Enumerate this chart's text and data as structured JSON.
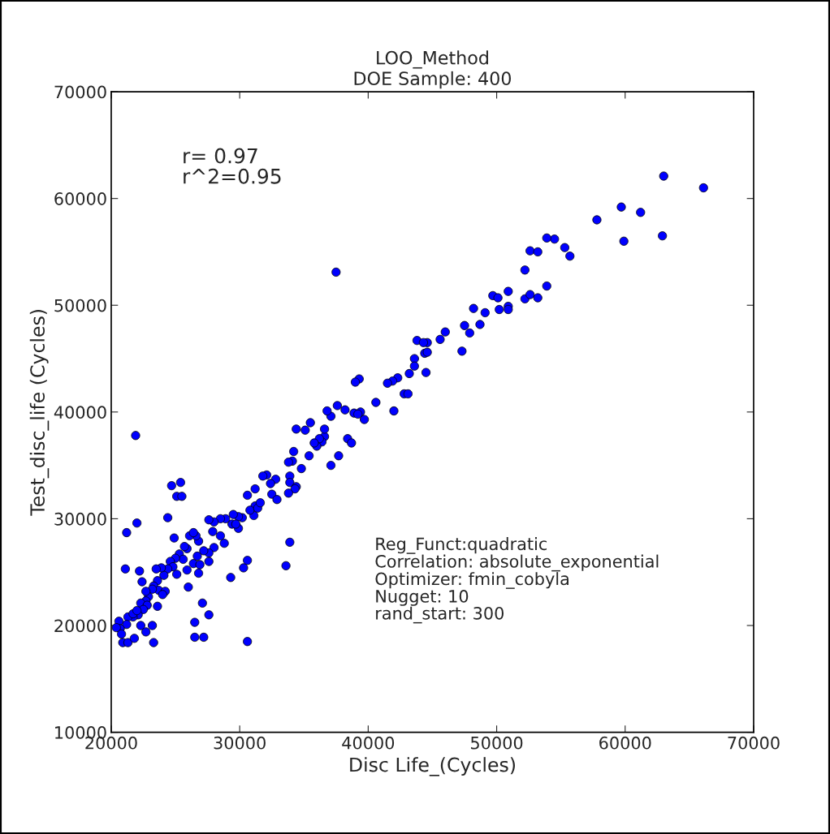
{
  "chart_data": {
    "type": "scatter",
    "title": "LOO_Method",
    "subtitle": "DOE Sample: 400",
    "xlabel": "Disc Life_(Cycles)",
    "ylabel": "Test_disc_life (Cycles)",
    "xlim": [
      20000,
      70000
    ],
    "xticks": [
      20000,
      30000,
      40000,
      50000,
      60000,
      70000
    ],
    "ylim": [
      10000,
      70000
    ],
    "yticks": [
      10000,
      20000,
      30000,
      40000,
      50000,
      60000,
      70000
    ],
    "grid": false,
    "marker": "circle",
    "annotations": [
      "r= 0.97\nr^2=0.95",
      "Reg_Funct:quadratic\nCorrelation: absolute_exponential\nOptimizer: fmin_cobyla\nNugget: 10\nrand_start: 300"
    ],
    "series": [
      {
        "color": "#0000ff",
        "x": [
          63000,
          66100,
          57800,
          59700,
          61200,
          59900,
          62900,
          54500,
          53900,
          55300,
          55700,
          52600,
          53200,
          52200,
          53900,
          52200,
          52600,
          53200,
          50900,
          49700,
          50100,
          49100,
          50900,
          50900,
          50200,
          48200,
          48700,
          47900,
          47500,
          47300,
          46000,
          45600,
          44600,
          43800,
          44300,
          44400,
          44600,
          43600,
          44500,
          43600,
          43200,
          42300,
          41900,
          41500,
          42000,
          42800,
          43100,
          40600,
          39300,
          39000,
          38200,
          39400,
          39700,
          38900,
          39200,
          38400,
          38700,
          37500,
          37600,
          37100,
          37700,
          37100,
          36800,
          36600,
          36400,
          36000,
          36200,
          35800,
          36600,
          35100,
          34400,
          35500,
          34800,
          35400,
          34200,
          34100,
          33800,
          33900,
          33900,
          34400,
          34300,
          33800,
          33600,
          33900,
          32800,
          32500,
          32400,
          32100,
          31800,
          32900,
          31200,
          31200,
          30600,
          31100,
          30800,
          31400,
          31600,
          30200,
          29900,
          29500,
          29900,
          29400,
          29300,
          30300,
          30600,
          30600,
          29700,
          28900,
          28500,
          28000,
          27600,
          27900,
          28500,
          28800,
          28000,
          27600,
          27200,
          26800,
          26600,
          26100,
          26400,
          25900,
          25700,
          25300,
          25600,
          25000,
          24600,
          24800,
          24400,
          24100,
          23900,
          23600,
          23300,
          23700,
          23200,
          22900,
          22700,
          22300,
          22800,
          22500,
          22100,
          21700,
          21300,
          21200,
          20600,
          20700,
          20400,
          20800,
          20900,
          21300,
          21800,
          21700,
          22300,
          22000,
          22700,
          23200,
          23300,
          21100,
          21200,
          22000,
          21900,
          22200,
          24400,
          24700,
          25100,
          25500,
          25400,
          24900,
          24200,
          25100,
          25900,
          26000,
          26800,
          26400,
          26500,
          27200,
          26500,
          27100,
          27600,
          26900,
          27600,
          23500,
          24000,
          23600,
          22700,
          22400,
          26700
        ],
        "values": [
          62100,
          61000,
          58000,
          59200,
          58700,
          56000,
          56500,
          56200,
          56300,
          55400,
          54600,
          55100,
          55000,
          53300,
          51800,
          50600,
          51000,
          50700,
          51300,
          50900,
          50700,
          49300,
          49900,
          49600,
          49600,
          49700,
          48200,
          47400,
          48100,
          45700,
          47500,
          46800,
          46500,
          46700,
          46500,
          45500,
          45600,
          45000,
          43700,
          44300,
          43600,
          43200,
          42900,
          42700,
          40100,
          41700,
          41700,
          40900,
          43100,
          42800,
          40200,
          40000,
          39300,
          39900,
          39800,
          37500,
          37100,
          53100,
          40600,
          39600,
          35900,
          35000,
          40100,
          37700,
          37200,
          36800,
          37500,
          37100,
          38400,
          38300,
          38400,
          39000,
          34700,
          35900,
          36300,
          35400,
          35300,
          34000,
          33400,
          33000,
          32800,
          32400,
          25600,
          27800,
          33700,
          32300,
          33300,
          34100,
          34000,
          31800,
          32800,
          31200,
          32200,
          30300,
          30800,
          31000,
          31500,
          30100,
          30200,
          30400,
          29100,
          29500,
          24500,
          25400,
          26100,
          18500,
          29500,
          30000,
          30000,
          29700,
          29900,
          28800,
          28400,
          27700,
          27300,
          26800,
          27000,
          27900,
          28400,
          28400,
          28700,
          27200,
          27400,
          26700,
          26200,
          26300,
          26000,
          25500,
          25300,
          24700,
          25400,
          24200,
          23700,
          23300,
          23400,
          22700,
          22300,
          22100,
          21900,
          21500,
          21000,
          20800,
          20800,
          20100,
          20400,
          19700,
          19800,
          19200,
          18400,
          18400,
          18800,
          21100,
          20000,
          21400,
          19400,
          20000,
          18400,
          25300,
          28700,
          29600,
          37800,
          25100,
          30100,
          33100,
          32100,
          32100,
          33400,
          28200,
          23200,
          24800,
          25200,
          23600,
          24900,
          25800,
          18900,
          18900,
          20300,
          22100,
          21000,
          25700,
          26000,
          25300,
          22900,
          21800,
          23200,
          24100,
          26500
        ]
      }
    ]
  }
}
